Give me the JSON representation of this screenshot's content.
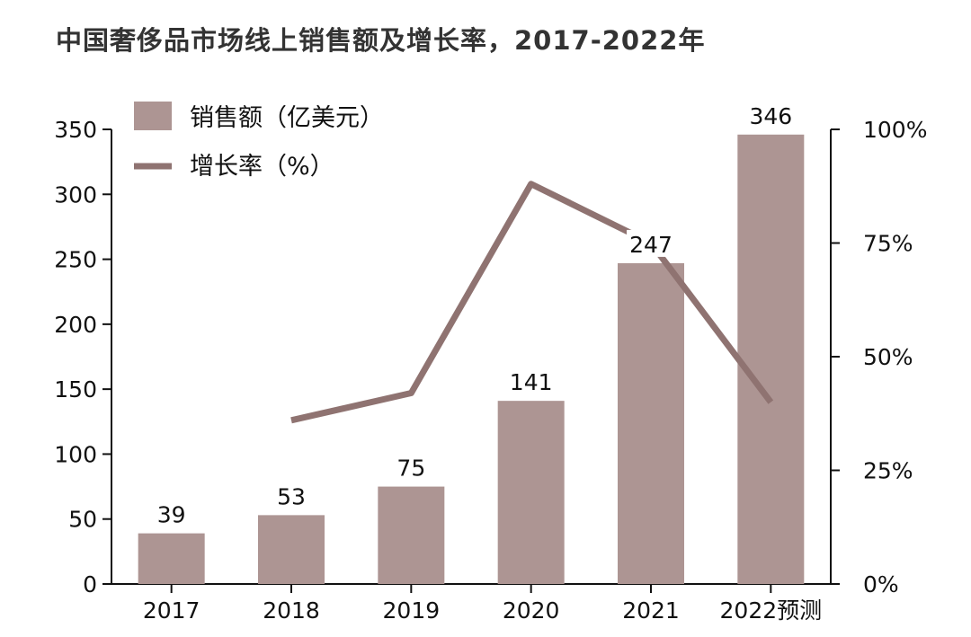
{
  "chart_data": {
    "type": "bar",
    "title": "中国奢侈品市场线上销售额及增长率，2017-2022年",
    "categories": [
      "2017",
      "2018",
      "2019",
      "2020",
      "2021",
      "2022预测"
    ],
    "series": [
      {
        "name": "销售额（亿美元）",
        "type": "bar",
        "axis": "left",
        "values": [
          39,
          53,
          75,
          141,
          247,
          346
        ],
        "color": "#ad9593"
      },
      {
        "name": "增长率（%）",
        "type": "line",
        "axis": "right",
        "values": [
          null,
          36,
          42,
          88,
          75,
          40
        ],
        "color": "#8f7371"
      }
    ],
    "y_left": {
      "min": 0,
      "max": 350,
      "ticks": [
        "0",
        "50",
        "100",
        "150",
        "200",
        "250",
        "300",
        "350"
      ]
    },
    "y_right": {
      "min": 0,
      "max": 100,
      "ticks": [
        "0%",
        "25%",
        "50%",
        "75%",
        "100%"
      ]
    },
    "data_labels": [
      "39",
      "53",
      "75",
      "141",
      "247",
      "346"
    ],
    "legend_position": "top-left",
    "grid": false
  }
}
